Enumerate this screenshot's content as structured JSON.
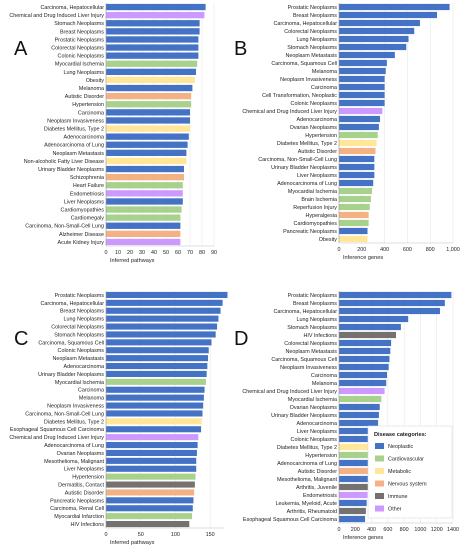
{
  "colors": {
    "Neoplastic": "#4472C4",
    "Cardiovascular": "#A9D18E",
    "Metabolic": "#FFE699",
    "Nervous system": "#F4B183",
    "Immune": "#757171",
    "Other": "#CC99FF"
  },
  "legend": {
    "title": "Disease categories:",
    "items": [
      {
        "label": "Neoplastic",
        "color": "#4472C4"
      },
      {
        "label": "Cardiovascular",
        "color": "#A9D18E"
      },
      {
        "label": "Metabolic",
        "color": "#FFE699"
      },
      {
        "label": "Nervous system",
        "color": "#F4B183"
      },
      {
        "label": "Immune",
        "color": "#757171"
      },
      {
        "label": "Other",
        "color": "#CC99FF"
      }
    ]
  },
  "chart_data": [
    {
      "type": "bar",
      "orientation": "horizontal",
      "panel": "A",
      "xlabel": "Inferred pathways",
      "xlim": [
        0,
        90
      ],
      "xticks": [
        0,
        10,
        20,
        30,
        40,
        50,
        60,
        70,
        80,
        90
      ],
      "categories": [
        "Carcinoma, Hepatocellular",
        "Chemical and Drug Induced Liver Injury",
        "Stomach Neoplasms",
        "Breast Neoplasms",
        "Prostatic Neoplasms",
        "Colorectal Neoplasms",
        "Colonic Neoplasms",
        "Myocardial Ischemia",
        "Lung Neoplasms",
        "Obesity",
        "Melanoma",
        "Autistic Disorder",
        "Hypertension",
        "Carcinoma",
        "Neoplasm Invasiveness",
        "Diabetes Mellitus, Type 2",
        "Adenocarcinoma",
        "Adenocarcinoma of Lung",
        "Neoplasm Metastasis",
        "Non-alcoholic Fatty Liver Disease",
        "Urinary Bladder Neoplasms",
        "Schizophrenia",
        "Heart Failure",
        "Endometriosis",
        "Liver Neoplasms",
        "Cardiomyopathies",
        "Cardiomegaly",
        "Carcinoma, Non-Small-Cell Lung",
        "Alzheimer Disease",
        "Acute Kidney Injury"
      ],
      "values": [
        83,
        82,
        78,
        78,
        77,
        77,
        77,
        76,
        75,
        74,
        72,
        71,
        71,
        70,
        70,
        70,
        69,
        68,
        67,
        67,
        65,
        65,
        64,
        64,
        64,
        63,
        62,
        62,
        62,
        62
      ],
      "bar_categories": [
        "Neoplastic",
        "Other",
        "Neoplastic",
        "Neoplastic",
        "Neoplastic",
        "Neoplastic",
        "Neoplastic",
        "Cardiovascular",
        "Neoplastic",
        "Metabolic",
        "Neoplastic",
        "Nervous system",
        "Cardiovascular",
        "Neoplastic",
        "Neoplastic",
        "Metabolic",
        "Neoplastic",
        "Neoplastic",
        "Neoplastic",
        "Metabolic",
        "Neoplastic",
        "Nervous system",
        "Cardiovascular",
        "Other",
        "Neoplastic",
        "Cardiovascular",
        "Cardiovascular",
        "Neoplastic",
        "Nervous system",
        "Other"
      ]
    },
    {
      "type": "bar",
      "orientation": "horizontal",
      "panel": "B",
      "xlabel": "Inference genes",
      "xlim": [
        0,
        1000
      ],
      "xticks": [
        0,
        200,
        400,
        600,
        800,
        1000
      ],
      "tick_labels": [
        "0",
        "200",
        "400",
        "600",
        "800",
        "1,000"
      ],
      "categories": [
        "Prostatic Neoplasms",
        "Breast Neoplasms",
        "Carcinoma, Hepatocellular",
        "Colorectal Neoplasms",
        "Lung Neoplasms",
        "Stomach Neoplasms",
        "Neoplasm Metastasis",
        "Carcinoma, Squamous Cell",
        "Melanoma",
        "Neoplasm Invasiveness",
        "Carcinoma",
        "Cell Transformation, Neoplastic",
        "Colonic Neoplasms",
        "Chemical and Drug Induced Liver Injury",
        "Adenocarcinoma",
        "Ovarian Neoplasms",
        "Hypertension",
        "Diabetes Mellitus, Type 2",
        "Autistic Disorder",
        "Carcinoma, Non-Small-Cell Lung",
        "Urinary Bladder Neoplasms",
        "Liver Neoplasms",
        "Adenocarcinoma of Lung",
        "Myocardial Ischemia",
        "Brain Ischemia",
        "Reperfusion Injury",
        "Hyperalgesia",
        "Cardiomyopathies",
        "Pancreatic Neoplasms",
        "Obesity"
      ],
      "values": [
        970,
        860,
        710,
        660,
        610,
        590,
        490,
        420,
        410,
        400,
        400,
        400,
        400,
        380,
        360,
        350,
        340,
        330,
        320,
        310,
        310,
        310,
        300,
        290,
        280,
        270,
        260,
        260,
        250,
        250
      ],
      "bar_categories": [
        "Neoplastic",
        "Neoplastic",
        "Neoplastic",
        "Neoplastic",
        "Neoplastic",
        "Neoplastic",
        "Neoplastic",
        "Neoplastic",
        "Neoplastic",
        "Neoplastic",
        "Neoplastic",
        "Neoplastic",
        "Neoplastic",
        "Other",
        "Neoplastic",
        "Neoplastic",
        "Cardiovascular",
        "Metabolic",
        "Nervous system",
        "Neoplastic",
        "Neoplastic",
        "Neoplastic",
        "Neoplastic",
        "Cardiovascular",
        "Cardiovascular",
        "Cardiovascular",
        "Nervous system",
        "Cardiovascular",
        "Neoplastic",
        "Metabolic"
      ]
    },
    {
      "type": "bar",
      "orientation": "horizontal",
      "panel": "C",
      "xlabel": "Inferred pathways",
      "xlim": [
        0,
        170
      ],
      "xticks": [
        0,
        50,
        100,
        150
      ],
      "categories": [
        "Prostatic Neoplasms",
        "Carcinoma, Hepatocellular",
        "Breast Neoplasms",
        "Lung Neoplasms",
        "Colorectal Neoplasms",
        "Stomach Neoplasms",
        "Carcinoma, Squamous Cell",
        "Colonic Neoplasms",
        "Neoplasm Metastasis",
        "Adenocarcinoma",
        "Urinary Bladder Neoplasms",
        "Myocardial Ischemia",
        "Carcinoma",
        "Melanoma",
        "Neoplasm Invasiveness",
        "Carcinoma, Non-Small-Cell Lung",
        "Diabetes Mellitus, Type 2",
        "Esophageal Squamous Cell Carcinoma",
        "Chemical and Drug Induced Liver Injury",
        "Adenocarcinoma of Lung",
        "Ovarian Neoplasms",
        "Mesothelioma, Malignant",
        "Liver Neoplasms",
        "Hypertension",
        "Dermatitis, Contact",
        "Autistic Disorder",
        "Pancreatic Neoplasms",
        "Carcinoma, Renal Cell",
        "Myocardial Infarction",
        "HIV Infections"
      ],
      "values": [
        175,
        168,
        165,
        162,
        160,
        158,
        152,
        148,
        147,
        146,
        145,
        144,
        142,
        141,
        140,
        139,
        138,
        137,
        133,
        132,
        131,
        130,
        130,
        129,
        128,
        127,
        126,
        125,
        124,
        120
      ],
      "bar_categories": [
        "Neoplastic",
        "Neoplastic",
        "Neoplastic",
        "Neoplastic",
        "Neoplastic",
        "Neoplastic",
        "Neoplastic",
        "Neoplastic",
        "Neoplastic",
        "Neoplastic",
        "Neoplastic",
        "Cardiovascular",
        "Neoplastic",
        "Neoplastic",
        "Neoplastic",
        "Neoplastic",
        "Metabolic",
        "Neoplastic",
        "Other",
        "Neoplastic",
        "Neoplastic",
        "Neoplastic",
        "Neoplastic",
        "Cardiovascular",
        "Immune",
        "Nervous system",
        "Neoplastic",
        "Neoplastic",
        "Cardiovascular",
        "Immune"
      ]
    },
    {
      "type": "bar",
      "orientation": "horizontal",
      "panel": "D",
      "xlabel": "Inference genes",
      "xlim": [
        0,
        1400
      ],
      "xticks": [
        0,
        200,
        400,
        600,
        800,
        1000,
        1200,
        1400
      ],
      "tick_labels": [
        "0",
        "200",
        "400",
        "600",
        "800",
        "1000",
        "1200",
        "1400"
      ],
      "categories": [
        "Prostatic Neoplasms",
        "Breast Neoplasms",
        "Carcinoma, Hepatocellular",
        "Lung Neoplasms",
        "Stomach Neoplasms",
        "HIV Infections",
        "Colorectal Neoplasms",
        "Neoplasm Metastasis",
        "Carcinoma, Squamous Cell",
        "Neoplasm Invasiveness",
        "Carcinoma",
        "Melanoma",
        "Chemical and Drug Induced Liver Injury",
        "Myocardial Ischemia",
        "Ovarian Neoplasms",
        "Urinary Bladder Neoplasms",
        "Adenocarcinoma",
        "Liver Neoplasms",
        "Colonic Neoplasms",
        "Diabetes Mellitus, Type 2",
        "Hypertension",
        "Adenocarcinoma of Lung",
        "Autistic Disorder",
        "Mesothelioma, Malignant",
        "Arthritis, Juvenile",
        "Endometriosis",
        "Leukemia, Myeloid, Acute",
        "Arthritis, Rheumatoid",
        "Esophageal Squamous Cell Carcinoma"
      ],
      "values": [
        1380,
        1300,
        1240,
        850,
        760,
        700,
        640,
        630,
        620,
        610,
        590,
        580,
        560,
        520,
        500,
        490,
        480,
        470,
        460,
        450,
        420,
        410,
        400,
        380,
        360,
        350,
        340,
        330,
        320
      ],
      "bar_categories": [
        "Neoplastic",
        "Neoplastic",
        "Neoplastic",
        "Neoplastic",
        "Neoplastic",
        "Immune",
        "Neoplastic",
        "Neoplastic",
        "Neoplastic",
        "Neoplastic",
        "Neoplastic",
        "Neoplastic",
        "Other",
        "Cardiovascular",
        "Neoplastic",
        "Neoplastic",
        "Neoplastic",
        "Neoplastic",
        "Neoplastic",
        "Metabolic",
        "Cardiovascular",
        "Neoplastic",
        "Nervous system",
        "Neoplastic",
        "Immune",
        "Other",
        "Neoplastic",
        "Immune",
        "Neoplastic"
      ]
    }
  ]
}
